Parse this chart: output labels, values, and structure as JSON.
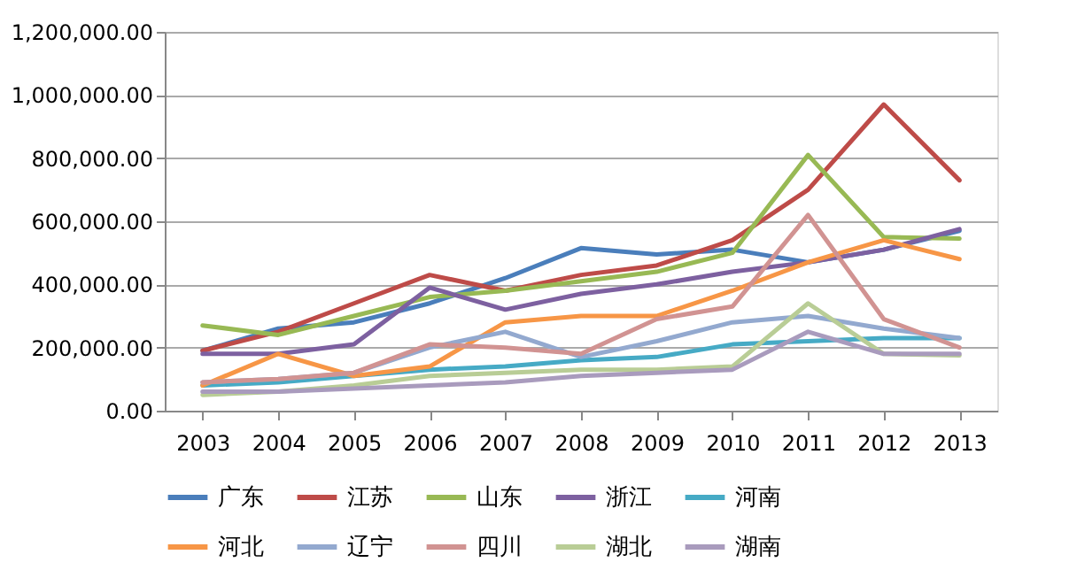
{
  "chart_data": {
    "type": "line",
    "categories": [
      "2003",
      "2004",
      "2005",
      "2006",
      "2007",
      "2008",
      "2009",
      "2010",
      "2011",
      "2012",
      "2013"
    ],
    "ylim": [
      0,
      1200000
    ],
    "yticks": [
      {
        "value": 0,
        "label": "0.00"
      },
      {
        "value": 200000,
        "label": "200,000.00"
      },
      {
        "value": 400000,
        "label": "400,000.00"
      },
      {
        "value": 600000,
        "label": "600,000.00"
      },
      {
        "value": 800000,
        "label": "800,000.00"
      },
      {
        "value": 1000000,
        "label": "1,000,000.00"
      },
      {
        "value": 1200000,
        "label": "1,200,000.00"
      }
    ],
    "grid": "y",
    "legend": "bottom",
    "marker": "none",
    "line_style": "solid",
    "series": [
      {
        "name": "广东",
        "color": "#4a7ebb",
        "values": [
          190000,
          260000,
          280000,
          340000,
          420000,
          515000,
          495000,
          510000,
          470000,
          510000,
          570000
        ]
      },
      {
        "name": "江苏",
        "color": "#be4b48",
        "values": [
          190000,
          250000,
          340000,
          430000,
          380000,
          430000,
          460000,
          540000,
          700000,
          970000,
          730000
        ]
      },
      {
        "name": "山东",
        "color": "#98b954",
        "values": [
          270000,
          240000,
          300000,
          360000,
          380000,
          410000,
          440000,
          500000,
          810000,
          550000,
          545000
        ]
      },
      {
        "name": "浙江",
        "color": "#7d60a0",
        "values": [
          180000,
          180000,
          210000,
          390000,
          320000,
          370000,
          400000,
          440000,
          470000,
          510000,
          575000
        ]
      },
      {
        "name": "河南",
        "color": "#46aac5",
        "values": [
          80000,
          90000,
          110000,
          130000,
          140000,
          160000,
          170000,
          210000,
          220000,
          230000,
          230000
        ]
      },
      {
        "name": "河北",
        "color": "#f79646",
        "values": [
          80000,
          180000,
          110000,
          140000,
          280000,
          300000,
          300000,
          380000,
          470000,
          540000,
          480000
        ]
      },
      {
        "name": "辽宁",
        "color": "#93a9cf",
        "values": [
          90000,
          100000,
          120000,
          200000,
          250000,
          170000,
          220000,
          280000,
          300000,
          260000,
          230000
        ]
      },
      {
        "name": "四川",
        "color": "#d19392",
        "values": [
          90000,
          100000,
          120000,
          210000,
          200000,
          180000,
          290000,
          330000,
          620000,
          290000,
          200000
        ]
      },
      {
        "name": "湖北",
        "color": "#b9cd96",
        "values": [
          50000,
          60000,
          80000,
          110000,
          120000,
          130000,
          130000,
          140000,
          340000,
          180000,
          175000
        ]
      },
      {
        "name": "湖南",
        "color": "#a99bbd",
        "values": [
          60000,
          60000,
          70000,
          80000,
          90000,
          110000,
          120000,
          130000,
          250000,
          180000,
          180000
        ]
      }
    ]
  }
}
